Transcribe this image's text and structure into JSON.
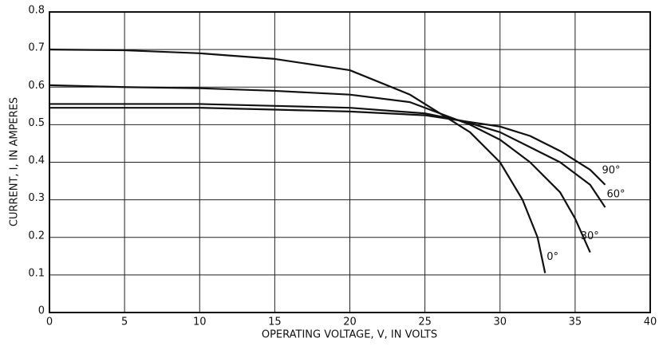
{
  "chart_data": {
    "type": "line",
    "xlabel": "OPERATING VOLTAGE, V, IN VOLTS",
    "ylabel": "CURRENT, I, IN AMPERES",
    "xlim": [
      0,
      40
    ],
    "xticks": [
      0,
      5,
      10,
      15,
      20,
      25,
      30,
      35,
      40
    ],
    "ylim": [
      0,
      0.8
    ],
    "yticks": [
      0,
      0.1,
      0.2,
      0.3,
      0.4,
      0.5,
      0.6,
      0.7,
      0.8
    ],
    "grid": true,
    "series": [
      {
        "name": "0°",
        "color": "#111111",
        "x": [
          0,
          5,
          10,
          15,
          20,
          24,
          26,
          28,
          30,
          31.5,
          32.5,
          33
        ],
        "values": [
          0.7,
          0.698,
          0.69,
          0.675,
          0.645,
          0.58,
          0.53,
          0.48,
          0.4,
          0.3,
          0.2,
          0.105
        ]
      },
      {
        "name": "30°",
        "color": "#111111",
        "x": [
          0,
          5,
          10,
          15,
          20,
          24,
          26,
          28,
          30,
          32,
          34,
          35,
          36
        ],
        "values": [
          0.605,
          0.6,
          0.597,
          0.59,
          0.58,
          0.56,
          0.53,
          0.5,
          0.46,
          0.4,
          0.32,
          0.25,
          0.16
        ]
      },
      {
        "name": "60°",
        "color": "#111111",
        "x": [
          0,
          10,
          15,
          20,
          25,
          27.5,
          30,
          32,
          34,
          36,
          37
        ],
        "values": [
          0.555,
          0.555,
          0.55,
          0.545,
          0.53,
          0.51,
          0.48,
          0.44,
          0.4,
          0.34,
          0.28
        ]
      },
      {
        "name": "90°",
        "color": "#111111",
        "x": [
          0,
          10,
          15,
          20,
          25,
          27.5,
          30,
          32,
          34,
          36,
          37
        ],
        "values": [
          0.545,
          0.545,
          0.54,
          0.535,
          0.525,
          0.51,
          0.495,
          0.47,
          0.43,
          0.38,
          0.34
        ]
      }
    ]
  }
}
